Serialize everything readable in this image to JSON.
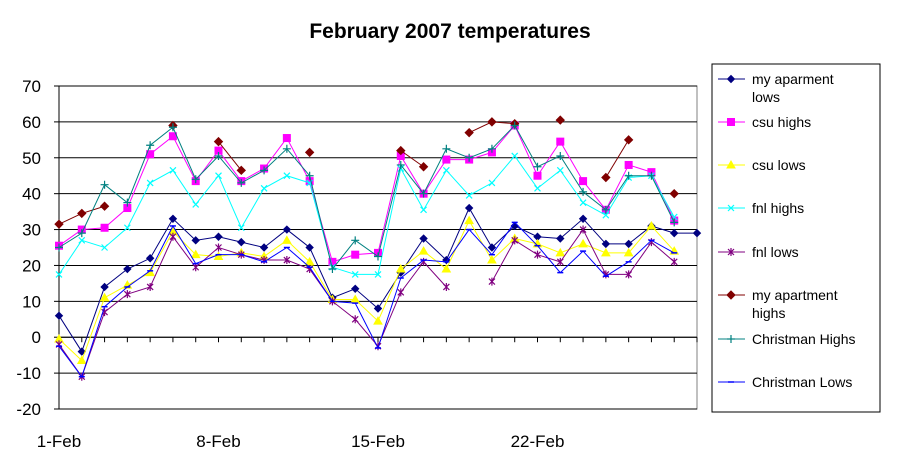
{
  "chart_data": {
    "type": "line",
    "title": "February 2007 temperatures",
    "xlabel": "",
    "ylabel": "",
    "ylim": [
      -20,
      70
    ],
    "yticks": [
      -20,
      -10,
      0,
      10,
      20,
      30,
      40,
      50,
      60,
      70
    ],
    "x": [
      1,
      2,
      3,
      4,
      5,
      6,
      7,
      8,
      9,
      10,
      11,
      12,
      13,
      14,
      15,
      16,
      17,
      18,
      19,
      20,
      21,
      22,
      23,
      24,
      25,
      26,
      27,
      28,
      29
    ],
    "xticks": [
      {
        "x": 1,
        "label": "1-Feb"
      },
      {
        "x": 8,
        "label": "8-Feb"
      },
      {
        "x": 15,
        "label": "15-Feb"
      },
      {
        "x": 22,
        "label": "22-Feb"
      }
    ],
    "grid": "horizontal",
    "legend_position": "right",
    "plot_background": "#ffffff",
    "series": [
      {
        "name": "my aparment\nlows",
        "color": "#000080",
        "marker": "diamond-small",
        "values": [
          6,
          -4,
          14,
          19,
          22,
          33,
          27,
          28,
          26.5,
          25,
          30,
          25,
          11,
          13.5,
          8,
          18,
          27.5,
          21.5,
          36,
          25,
          31,
          28,
          27.5,
          33,
          26,
          26,
          31,
          29,
          29
        ]
      },
      {
        "name": "csu highs",
        "color": "#ff00ff",
        "marker": "square",
        "values": [
          25.5,
          30,
          30.5,
          36,
          51,
          56,
          43.5,
          52,
          43.5,
          47,
          55.5,
          43.5,
          21,
          23,
          23.5,
          50.5,
          40,
          49.5,
          49.5,
          51.5,
          59,
          45,
          54.5,
          43.5,
          35.5,
          48,
          46,
          32.5,
          null
        ]
      },
      {
        "name": "csu lows",
        "color": "#ffff00",
        "marker": "triangle",
        "values": [
          -0.5,
          -6.5,
          11,
          14.5,
          18,
          29.5,
          23,
          22.5,
          23.5,
          22.5,
          27,
          21,
          10.5,
          10.5,
          4.5,
          19,
          24,
          19,
          32.5,
          21.5,
          27.5,
          26,
          23.5,
          26,
          23.5,
          23.5,
          31,
          24,
          null
        ]
      },
      {
        "name": "fnl highs",
        "color": "#00ffff",
        "marker": "x",
        "values": [
          17.5,
          27,
          25,
          30.5,
          43,
          46.5,
          37,
          45,
          30.5,
          41.5,
          45,
          43,
          19.5,
          17.5,
          17.5,
          47,
          35.5,
          46.5,
          39.5,
          43,
          50.5,
          41.5,
          46.5,
          37.5,
          34,
          44.5,
          45,
          33.5,
          null
        ]
      },
      {
        "name": "fnl lows",
        "color": "#800080",
        "marker": "star",
        "values": [
          -2,
          -11,
          7,
          12,
          14,
          28,
          19.5,
          25,
          23,
          21.5,
          21.5,
          19,
          10,
          5,
          -2.5,
          12.5,
          21,
          14,
          null,
          15.5,
          27,
          23,
          21,
          30,
          17.5,
          17.5,
          26.5,
          21,
          null
        ]
      },
      {
        "name": "my apartment\nhighs",
        "color": "#800000",
        "marker": "diamond",
        "values": [
          31.5,
          34.5,
          36.5,
          null,
          null,
          59,
          null,
          54.5,
          46.5,
          null,
          null,
          51.5,
          null,
          null,
          null,
          52,
          47.5,
          null,
          57,
          60,
          59.5,
          null,
          60.5,
          null,
          44.5,
          55,
          null,
          40,
          null
        ]
      },
      {
        "name": "Christman Highs",
        "color": "#008080",
        "marker": "plus",
        "values": [
          25,
          29,
          42.5,
          37.5,
          53.5,
          58.5,
          44,
          50.5,
          43,
          46.5,
          52.5,
          45,
          19,
          27,
          22.5,
          48,
          40,
          52.5,
          50,
          52.5,
          59,
          47.5,
          50.5,
          40.5,
          35.5,
          45,
          45,
          32,
          null
        ]
      },
      {
        "name": "Christman Lows",
        "color": "#0000ff",
        "marker": "dash",
        "values": [
          -2.5,
          -11,
          8.5,
          14,
          18.5,
          31,
          20.5,
          23,
          23,
          21,
          25,
          19.5,
          10,
          9.5,
          -3,
          16.5,
          21.5,
          21,
          30,
          23,
          32,
          25.5,
          18,
          24,
          17,
          21,
          27,
          23.5,
          null
        ]
      }
    ]
  }
}
